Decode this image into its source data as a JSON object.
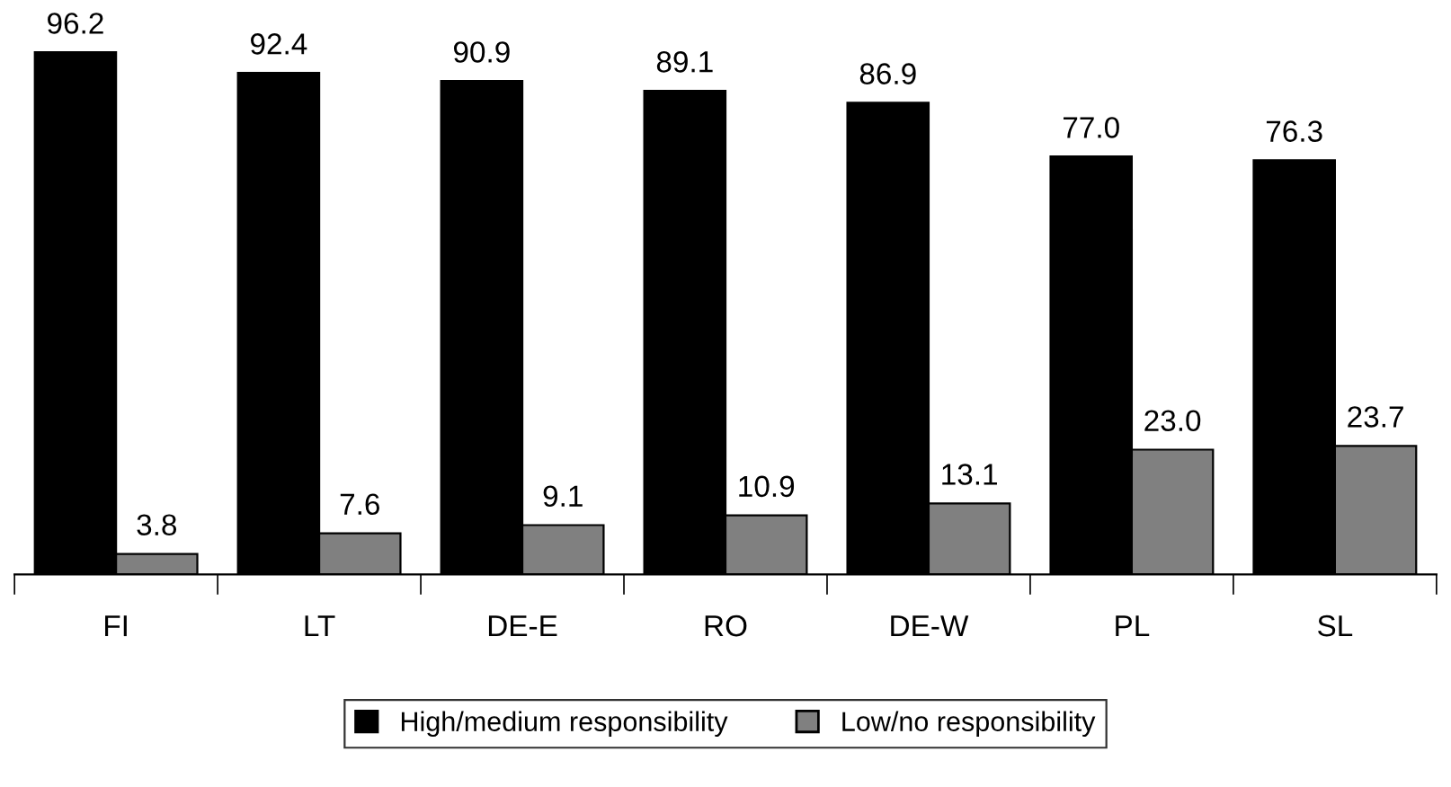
{
  "chart_data": {
    "type": "bar",
    "categories": [
      "FI",
      "LT",
      "DE-E",
      "RO",
      "DE-W",
      "PL",
      "SL"
    ],
    "series": [
      {
        "name": "High/medium responsibility",
        "color": "#000000",
        "values": [
          96.2,
          92.4,
          90.9,
          89.1,
          86.9,
          77.0,
          76.3
        ],
        "value_labels": [
          "96.2",
          "92.4",
          "90.9",
          "89.1",
          "86.9",
          "77.0",
          "76.3"
        ]
      },
      {
        "name": "Low/no responsibility",
        "color": "#808080",
        "values": [
          3.8,
          7.6,
          9.1,
          10.9,
          13.1,
          23.0,
          23.7
        ],
        "value_labels": [
          "3.8",
          "7.6",
          "9.1",
          "10.9",
          "13.1",
          "23.0",
          "23.7"
        ]
      }
    ],
    "legend": "bottom",
    "grid": false
  }
}
